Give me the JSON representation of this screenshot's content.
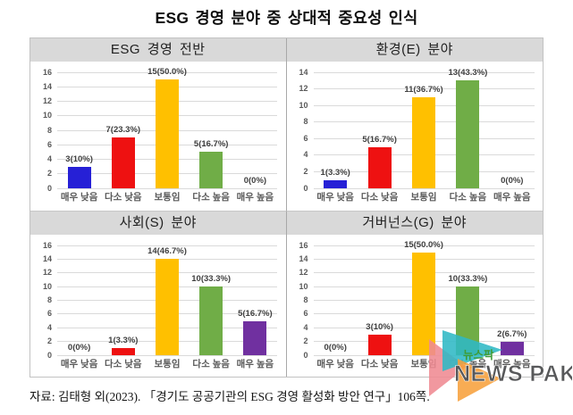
{
  "title": "ESG 경영 분야 중 상대적 중요성 인식",
  "source": "자료: 김태형 외(2023). 「경기도 공공기관의 ESG 경영 활성화 방안 연구」106쪽.",
  "watermark": {
    "korean": "뉴스팍",
    "english": "NEWS PAK"
  },
  "colors": {
    "bar_palette": [
      "#2620d6",
      "#ee1111",
      "#ffc000",
      "#70ad47",
      "#7030a0"
    ],
    "header_bg": "#d9d9d9",
    "gridline": "#dadada",
    "tick_text": "#595959",
    "value_text": "#3f3f3f",
    "watermark_korean": "#3f9c35",
    "watermark_english": "#57585a",
    "watermark_pink": "#ef8a92",
    "watermark_teal": "#2fb8c5",
    "watermark_orange": "#f7a13c"
  },
  "chart_data": [
    {
      "type": "bar",
      "title": "ESG 경영 전반",
      "categories": [
        "매우 낮음",
        "다소 낮음",
        "보통임",
        "다소 높음",
        "매우 높음"
      ],
      "values": [
        3,
        7,
        15,
        5,
        0
      ],
      "labels": [
        "3(10%)",
        "7(23.3%)",
        "15(50.0%)",
        "5(16.7%)",
        "0(0%)"
      ],
      "ylim": [
        0,
        16
      ],
      "ytick_step": 2,
      "grid": true,
      "legend": "none"
    },
    {
      "type": "bar",
      "title": "환경(E) 분야",
      "categories": [
        "매우 낮음",
        "다소 낮음",
        "보통임",
        "다소 높음",
        "매우 높음"
      ],
      "values": [
        1,
        5,
        11,
        13,
        0
      ],
      "labels": [
        "1(3.3%)",
        "5(16.7%)",
        "11(36.7%)",
        "13(43.3%)",
        "0(0%)"
      ],
      "ylim": [
        0,
        14
      ],
      "ytick_step": 2,
      "grid": true,
      "legend": "none"
    },
    {
      "type": "bar",
      "title": "사회(S) 분야",
      "categories": [
        "매우 낮음",
        "다소 낮음",
        "보통임",
        "다소 높음",
        "매우 높음"
      ],
      "values": [
        0,
        1,
        14,
        10,
        5
      ],
      "labels": [
        "0(0%)",
        "1(3.3%)",
        "14(46.7%)",
        "10(33.3%)",
        "5(16.7%)"
      ],
      "ylim": [
        0,
        16
      ],
      "ytick_step": 2,
      "grid": true,
      "legend": "none"
    },
    {
      "type": "bar",
      "title": "거버넌스(G) 분야",
      "categories": [
        "매우 낮음",
        "다소 낮음",
        "보통임",
        "다소 높음",
        "매우 높음"
      ],
      "values": [
        0,
        3,
        15,
        10,
        2
      ],
      "labels": [
        "0(0%)",
        "3(10%)",
        "15(50.0%)",
        "10(33.3%)",
        "2(6.7%)"
      ],
      "ylim": [
        0,
        16
      ],
      "ytick_step": 2,
      "grid": true,
      "legend": "none"
    }
  ]
}
